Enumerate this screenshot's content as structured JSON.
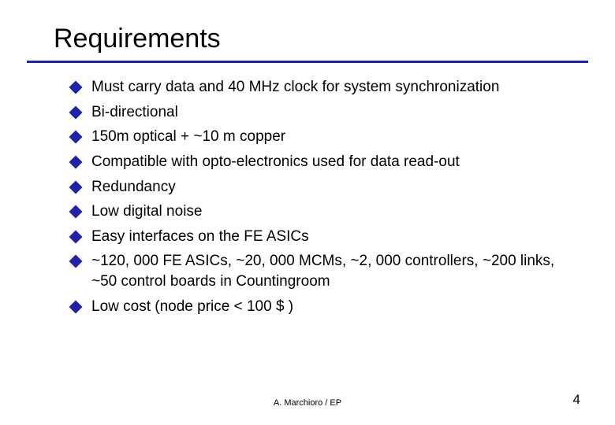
{
  "title": "Requirements",
  "bullets": [
    "Must carry data and 40 MHz clock for system synchronization",
    "Bi-directional",
    "150m optical + ~10 m copper",
    "Compatible with opto-electronics used for data read-out",
    "Redundancy",
    "Low digital noise",
    "Easy interfaces on the FE ASICs",
    "~120, 000 FE ASICs, ~20, 000 MCMs, ~2, 000 controllers, ~200 links, ~50 control boards in Countingroom",
    "Low cost (node price < 100 $ )"
  ],
  "footer_center": "A. Marchioro / EP",
  "page_number": "4",
  "colors": {
    "accent": "#2023aa",
    "text": "#000000",
    "background": "#ffffff"
  }
}
